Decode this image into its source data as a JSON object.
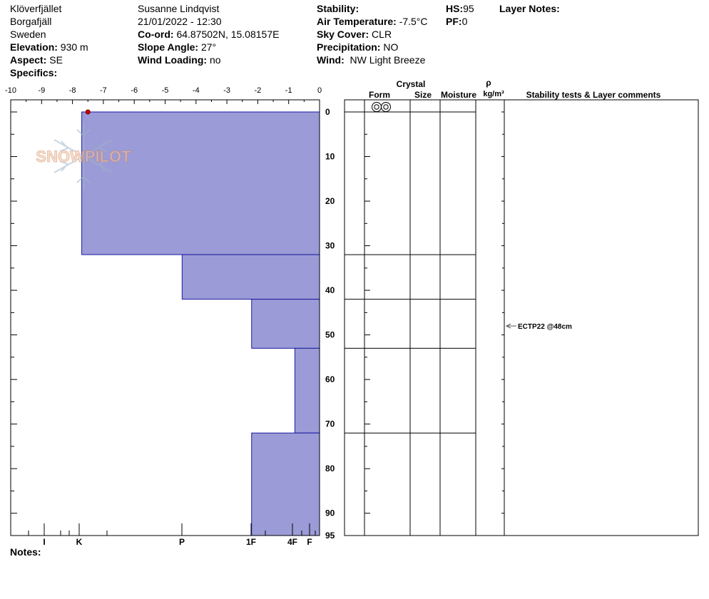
{
  "header": {
    "location": "Klöverfjället",
    "region": "Borgafjäll",
    "country": "Sweden",
    "elevation_label": "Elevation:",
    "elevation_value": "930 m",
    "aspect_label": "Aspect:",
    "aspect_value": "SE",
    "specifics_label": "Specifics:",
    "observer": "Susanne Lindqvist",
    "datetime": "21/01/2022 - 12:30",
    "coord_label": "Co-ord:",
    "coord_value": "64.87502N, 15.08157E",
    "slope_label": "Slope Angle:",
    "slope_value": "27°",
    "wind_loading_label": "Wind Loading:",
    "wind_loading_value": "no",
    "stability_label": "Stability:",
    "air_temp_label": "Air Temperature:",
    "air_temp_value": "-7.5°C",
    "sky_label": "Sky Cover:",
    "sky_value": "CLR",
    "precip_label": "Precipitation:",
    "precip_value": "NO",
    "wind_label": "Wind:",
    "wind_value": "NW Light Breeze",
    "hs_label": "HS:",
    "hs_value": "95",
    "pf_label": "PF:",
    "pf_value": "0",
    "layer_notes_label": "Layer Notes:",
    "notes_label": "Notes:"
  },
  "watermark": "SNOWPILOT",
  "colors": {
    "hardness_fill": "#9b9bd7",
    "hardness_stroke": "#1a1aa0",
    "temp_marker": "#cc0000"
  },
  "table_headers": {
    "crystal": "Crystal",
    "form": "Form",
    "size": "Size",
    "moisture": "Moisture",
    "rho": "ρ",
    "density_unit": "kg/m³",
    "comments": "Stability tests & Layer comments"
  },
  "chart_data": {
    "type": "snow-profile",
    "temperature_axis": {
      "ticks": [
        -10,
        -9,
        -8,
        -7,
        -6,
        -5,
        -4,
        -3,
        -2,
        -1,
        0
      ],
      "range": [
        -10,
        0
      ]
    },
    "depth_axis": {
      "ticks": [
        0,
        10,
        20,
        30,
        40,
        50,
        60,
        70,
        80,
        90,
        95
      ],
      "range": [
        0,
        95
      ]
    },
    "hardness_axis": {
      "labels": [
        "I",
        "K",
        "P",
        "1F",
        "4F",
        "F"
      ]
    },
    "hardness_layers": [
      {
        "top": 0,
        "bottom": 32,
        "hardness": "K",
        "hardness_index": 7.7
      },
      {
        "top": 32,
        "bottom": 42,
        "hardness": "P",
        "hardness_index": 4.45
      },
      {
        "top": 42,
        "bottom": 53,
        "hardness": "1F",
        "hardness_index": 2.2
      },
      {
        "top": 53,
        "bottom": 72,
        "hardness": "4F",
        "hardness_index": 0.8
      },
      {
        "top": 72,
        "bottom": 95,
        "hardness": "1F",
        "hardness_index": 2.2
      }
    ],
    "temperatures": [
      {
        "depth": 0,
        "temp": -7.5
      }
    ],
    "layer_boundaries": [
      0,
      32,
      42,
      53,
      72
    ],
    "surface_form": "surface-hoar-icon",
    "stability_tests": [
      {
        "depth": 48,
        "label": "ECTP22 @48cm"
      }
    ]
  }
}
